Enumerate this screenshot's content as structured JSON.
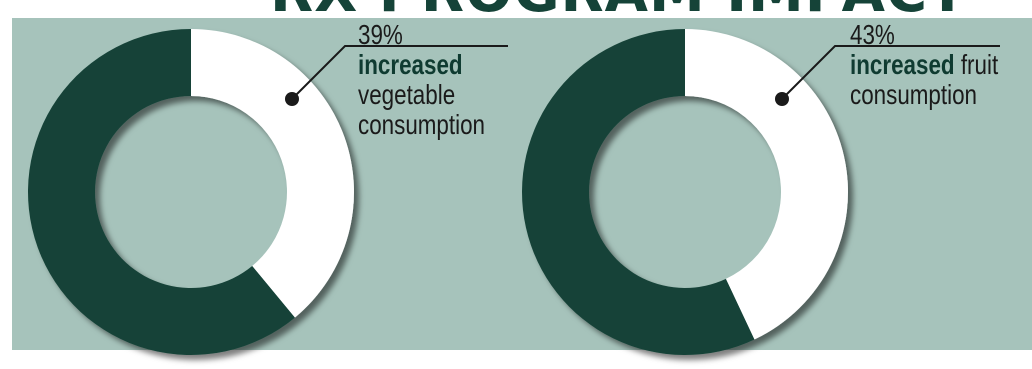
{
  "banner": {
    "text": "RX PROGRAM IMPACT"
  },
  "colors": {
    "panel_bg": "#a6c3bb",
    "dark_green": "#154338",
    "white": "#ffffff",
    "banner_text": "#154338"
  },
  "chart_data": [
    {
      "type": "pie",
      "style": "donut",
      "slices": [
        {
          "label": "increased vegetable consumption",
          "value": 39
        },
        {
          "label": "other",
          "value": 61
        }
      ],
      "annotation": {
        "percent": "39%",
        "bold": "increased",
        "rest_line1": "",
        "line2": "vegetable",
        "line3": "consumption"
      }
    },
    {
      "type": "pie",
      "style": "donut",
      "slices": [
        {
          "label": "increased fruit consumption",
          "value": 43
        },
        {
          "label": "other",
          "value": 57
        }
      ],
      "annotation": {
        "percent": "43%",
        "bold": "increased",
        "rest_line1": "fruit",
        "line2": "consumption",
        "line3": ""
      }
    }
  ]
}
